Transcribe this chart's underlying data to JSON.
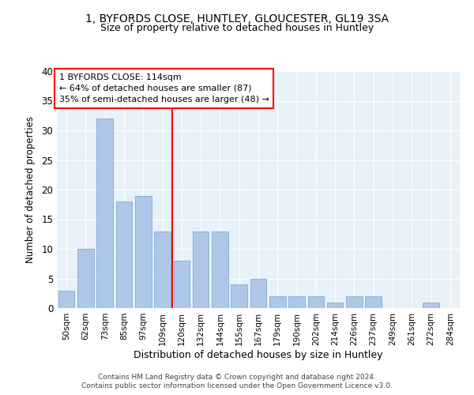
{
  "title1": "1, BYFORDS CLOSE, HUNTLEY, GLOUCESTER, GL19 3SA",
  "title2": "Size of property relative to detached houses in Huntley",
  "xlabel": "Distribution of detached houses by size in Huntley",
  "ylabel": "Number of detached properties",
  "categories": [
    "50sqm",
    "62sqm",
    "73sqm",
    "85sqm",
    "97sqm",
    "109sqm",
    "120sqm",
    "132sqm",
    "144sqm",
    "155sqm",
    "167sqm",
    "179sqm",
    "190sqm",
    "202sqm",
    "214sqm",
    "226sqm",
    "237sqm",
    "249sqm",
    "261sqm",
    "272sqm",
    "284sqm"
  ],
  "values": [
    3,
    10,
    32,
    18,
    19,
    13,
    8,
    13,
    13,
    4,
    5,
    2,
    2,
    2,
    1,
    2,
    2,
    0,
    0,
    1,
    0
  ],
  "bar_color": "#aec6e8",
  "bar_edge_color": "#7aafd4",
  "red_line_index": 6,
  "annotation_title": "1 BYFORDS CLOSE: 114sqm",
  "annotation_line1": "← 64% of detached houses are smaller (87)",
  "annotation_line2": "35% of semi-detached houses are larger (48) →",
  "ylim": [
    0,
    40
  ],
  "yticks": [
    0,
    5,
    10,
    15,
    20,
    25,
    30,
    35,
    40
  ],
  "bg_color": "#e8f0f8",
  "footer1": "Contains HM Land Registry data © Crown copyright and database right 2024.",
  "footer2": "Contains public sector information licensed under the Open Government Licence v3.0."
}
